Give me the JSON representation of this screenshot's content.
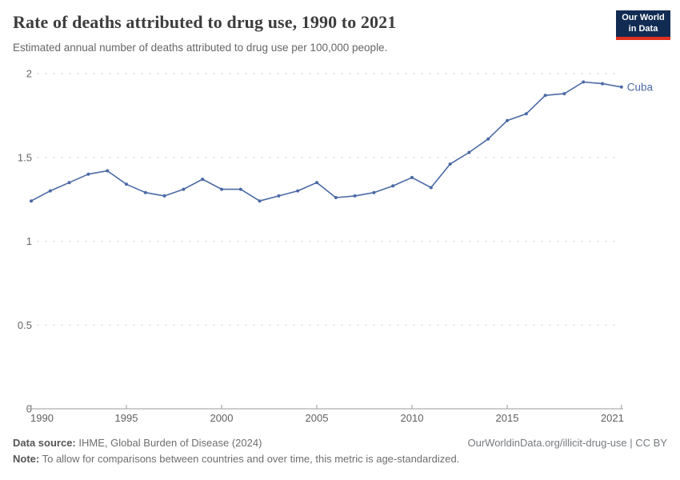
{
  "header": {
    "title": "Rate of deaths attributed to drug use, 1990 to 2021",
    "subtitle": "Estimated annual number of deaths attributed to drug use per 100,000 people.",
    "logo": {
      "line1": "Our World",
      "line2": "in Data",
      "bg_color": "#112b52",
      "accent_color": "#e0301e"
    }
  },
  "chart_data": {
    "type": "line",
    "title": "Rate of deaths attributed to drug use, 1990 to 2021",
    "xlabel": "",
    "ylabel": "",
    "xlim": [
      1990,
      2021
    ],
    "ylim": [
      0,
      2
    ],
    "x_ticks": [
      1990,
      1995,
      2000,
      2005,
      2010,
      2015,
      2021
    ],
    "y_ticks": [
      0,
      0.5,
      1,
      1.5,
      2
    ],
    "grid": "horizontal-dashed",
    "legend_position": "line-end-label",
    "series": [
      {
        "name": "Cuba",
        "color": "#4a69a5",
        "x": [
          1990,
          1991,
          1992,
          1993,
          1994,
          1995,
          1996,
          1997,
          1998,
          1999,
          2000,
          2001,
          2002,
          2003,
          2004,
          2005,
          2006,
          2007,
          2008,
          2009,
          2010,
          2011,
          2012,
          2013,
          2014,
          2015,
          2016,
          2017,
          2018,
          2019,
          2020,
          2021
        ],
        "values": [
          1.24,
          1.3,
          1.35,
          1.4,
          1.42,
          1.34,
          1.29,
          1.27,
          1.31,
          1.37,
          1.31,
          1.31,
          1.24,
          1.27,
          1.3,
          1.35,
          1.26,
          1.27,
          1.29,
          1.33,
          1.38,
          1.32,
          1.46,
          1.53,
          1.61,
          1.72,
          1.76,
          1.87,
          1.88,
          1.95,
          1.94,
          1.92
        ]
      }
    ]
  },
  "footer": {
    "data_source_label": "Data source:",
    "data_source_text": " IHME, Global Burden of Disease (2024)",
    "link": "OurWorldinData.org/illicit-drug-use | CC BY",
    "note_label": "Note:",
    "note_text": " To allow for comparisons between countries and over time, this metric is age-standardized."
  },
  "colors": {
    "line": "#4a69a5",
    "grid": "#dddddd",
    "axis": "#999999",
    "tick_label": "#666666",
    "x_tick_label": "#606060"
  }
}
